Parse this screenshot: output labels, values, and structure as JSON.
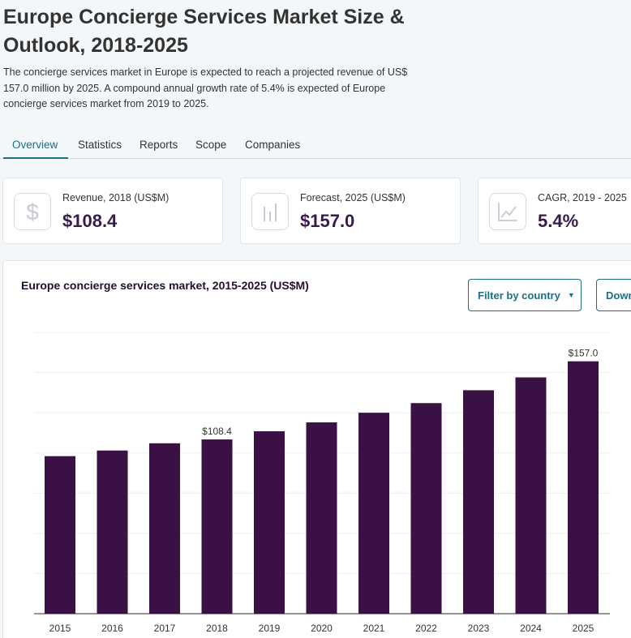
{
  "header": {
    "title": "Europe Concierge Services Market Size & Outlook, 2018-2025",
    "description": "The concierge services market in Europe is expected to reach a projected revenue of US$ 157.0 million by 2025. A compound annual growth rate of 5.4% is expected of Europe concierge services market from 2019 to 2025."
  },
  "tabs": [
    {
      "label": "Overview",
      "active": true
    },
    {
      "label": "Statistics"
    },
    {
      "label": "Reports"
    },
    {
      "label": "Scope"
    },
    {
      "label": "Companies"
    }
  ],
  "kpis": [
    {
      "label": "Revenue, 2018 (US$M)",
      "value": "$108.4",
      "icon": "dollar-icon"
    },
    {
      "label": "Forecast, 2025 (US$M)",
      "value": "$157.0",
      "icon": "bar-chart-icon"
    },
    {
      "label": "CAGR, 2019 - 2025",
      "value": "5.4%",
      "icon": "trend-line-icon"
    }
  ],
  "chart_section": {
    "title": "Europe concierge services market, 2015-2025 (US$M)",
    "filter_label": "Filter by country",
    "download_label": "Down"
  },
  "colors": {
    "bar": "#3a1045",
    "accent": "#1d6e84"
  },
  "chart_data": {
    "type": "bar",
    "categories": [
      "2015",
      "2016",
      "2017",
      "2018",
      "2019",
      "2020",
      "2021",
      "2022",
      "2023",
      "2024",
      "2025"
    ],
    "values": [
      98.0,
      101.5,
      106.0,
      108.4,
      113.5,
      119.0,
      125.0,
      131.0,
      139.0,
      147.0,
      157.0
    ],
    "data_labels": {
      "2018": "$108.4",
      "2025": "$157.0"
    },
    "ylim": [
      0,
      175
    ],
    "grid": true
  }
}
